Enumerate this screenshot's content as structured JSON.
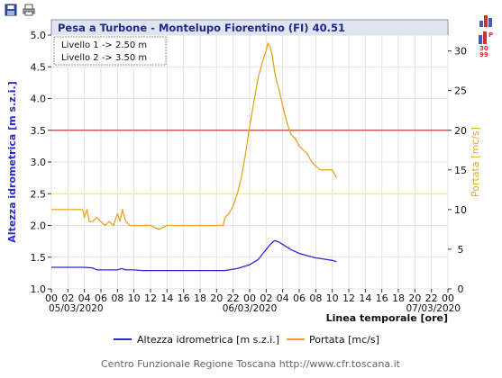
{
  "toolbar": {
    "left_icons": [
      "save-icon",
      "print-icon"
    ],
    "right_icons": [
      "bar-chart-icon",
      "precipitation-icon"
    ],
    "right_badge_text": "30\n99"
  },
  "chart_data": {
    "type": "line",
    "title": "Pesa a Turbone - Montelupo Fiorentino (FI) 40.51",
    "legend_box": [
      "Livello 1 -> 2.50 m",
      "Livello 2 -> 3.50 m"
    ],
    "ylabel_left": "Altezza idrometrica [m s.z.i.]",
    "ylabel_right": "Portata [mc/s]",
    "xlabel": "Linea temporale [ore]",
    "ylim_left": [
      1.0,
      5.0
    ],
    "ylim_right": [
      0,
      32
    ],
    "y_ticks_left": [
      "1.0",
      "1.5",
      "2.0",
      "2.5",
      "3.0",
      "3.5",
      "4.0",
      "4.5",
      "5.0"
    ],
    "y_ticks_right": [
      "0",
      "5",
      "10",
      "15",
      "20",
      "25",
      "30"
    ],
    "x_range_hours": [
      0,
      48
    ],
    "x_ticks": [
      "00",
      "02",
      "04",
      "06",
      "08",
      "10",
      "12",
      "14",
      "16",
      "18",
      "20",
      "22",
      "00",
      "02",
      "04",
      "06",
      "08",
      "10",
      "12",
      "14",
      "16",
      "18",
      "20",
      "22",
      "00"
    ],
    "x_dates": [
      {
        "hour": 0,
        "label": "05/03/2020"
      },
      {
        "hour": 24,
        "label": "06/03/2020"
      },
      {
        "hour": 48,
        "label": "07/03/2020"
      }
    ],
    "threshold_lines": [
      {
        "name": "Livello 1",
        "value": 2.5,
        "color": "#f2f25a"
      },
      {
        "name": "Livello 2",
        "value": 3.5,
        "color": "#c04040"
      }
    ],
    "grid": true,
    "series": [
      {
        "name": "Altezza idrometrica [m s.z.i.]",
        "axis": "left",
        "color": "#2a2ad0",
        "x": [
          0,
          1,
          2,
          3,
          4,
          5,
          5.5,
          6,
          7,
          8,
          8.5,
          9,
          10,
          11,
          12,
          14,
          16,
          18,
          20,
          21,
          22,
          22.5,
          23,
          24,
          25,
          25.5,
          26,
          26.5,
          27,
          27.5,
          28,
          29,
          30,
          31,
          32,
          33,
          34,
          34.5
        ],
        "y": [
          1.34,
          1.34,
          1.34,
          1.34,
          1.34,
          1.33,
          1.3,
          1.3,
          1.3,
          1.3,
          1.32,
          1.3,
          1.3,
          1.29,
          1.29,
          1.29,
          1.29,
          1.29,
          1.29,
          1.29,
          1.31,
          1.32,
          1.34,
          1.38,
          1.46,
          1.54,
          1.62,
          1.7,
          1.76,
          1.74,
          1.7,
          1.62,
          1.56,
          1.52,
          1.49,
          1.47,
          1.45,
          1.43
        ]
      },
      {
        "name": "Portata [mc/s]",
        "axis": "right",
        "color": "#e8a420",
        "x": [
          0,
          2,
          3.8,
          4,
          4.3,
          4.6,
          5,
          5.5,
          6,
          6.5,
          7,
          7.5,
          8,
          8.3,
          8.6,
          9,
          9.5,
          10,
          11,
          12,
          13,
          14,
          15,
          16,
          17,
          18,
          19,
          20,
          20.8,
          21,
          21.5,
          22,
          22.5,
          23,
          23.5,
          24,
          24.5,
          25,
          25.5,
          26,
          26.2,
          26.5,
          26.8,
          27,
          27.3,
          27.6,
          28,
          28.5,
          29,
          29.5,
          30,
          30.5,
          31,
          31.5,
          32,
          32.5,
          33,
          33.5,
          34,
          34.5
        ],
        "y": [
          10.0,
          10.0,
          10.0,
          9.0,
          10.0,
          8.5,
          8.5,
          9.0,
          8.5,
          8.0,
          8.5,
          8.0,
          9.5,
          8.5,
          10.0,
          8.5,
          8.0,
          8.0,
          8.0,
          8.0,
          7.5,
          8.0,
          8.0,
          8.0,
          8.0,
          8.0,
          8.0,
          8.0,
          8.0,
          9.0,
          9.5,
          10.5,
          12.0,
          14.0,
          17.0,
          20.5,
          23.5,
          26.5,
          28.5,
          30.0,
          31.0,
          30.5,
          29.0,
          27.5,
          26.0,
          25.0,
          23.0,
          21.0,
          19.5,
          19.0,
          18.0,
          17.5,
          17.0,
          16.0,
          15.5,
          15.0,
          15.0,
          15.0,
          15.0,
          14.0
        ]
      }
    ]
  },
  "footer": {
    "credit": "Centro Funzionale Regione Toscana http://www.cfr.toscana.it"
  }
}
